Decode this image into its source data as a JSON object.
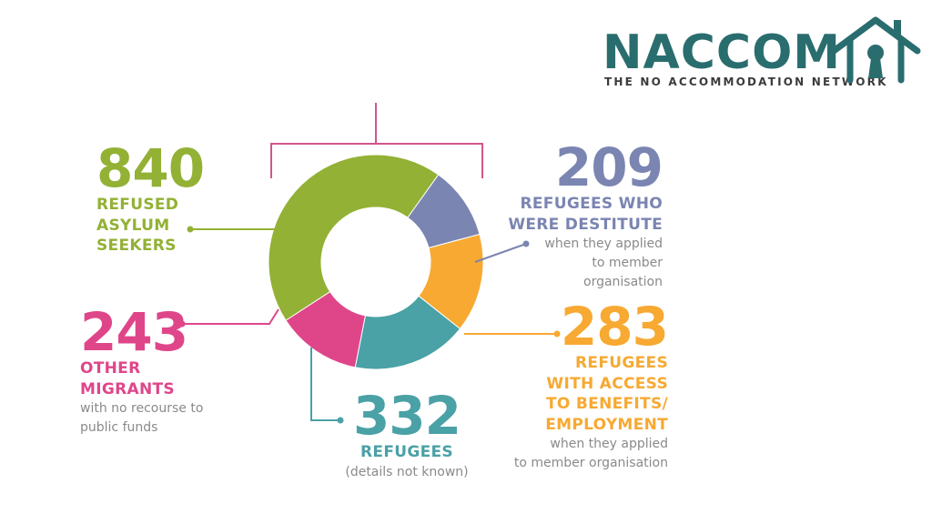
{
  "logo": {
    "name": "NACCOM",
    "tagline": "THE NO ACCOMMODATION NETWORK",
    "color": "#2a6d6f"
  },
  "chart_data": {
    "type": "pie",
    "variant": "donut",
    "title": "",
    "categories": [
      "REFUSED ASYLUM SEEKERS",
      "REFUGEES WHO WERE DESTITUTE",
      "REFUGEES WITH ACCESS TO BENEFITS/ EMPLOYMENT",
      "REFUGEES",
      "OTHER MIGRANTS"
    ],
    "values": [
      840,
      209,
      283,
      332,
      243
    ],
    "colors": [
      "#93b135",
      "#7b85b1",
      "#f7a932",
      "#4aa1a6",
      "#df468a"
    ],
    "labels": [
      {
        "value": "840",
        "lines": [
          "REFUSED",
          "ASYLUM",
          "SEEKERS"
        ],
        "note": [],
        "color": "#93b135"
      },
      {
        "value": "209",
        "lines": [
          "REFUGEES WHO",
          "WERE DESTITUTE"
        ],
        "note": [
          "when they applied",
          "to member",
          "organisation"
        ],
        "color": "#7b85b1"
      },
      {
        "value": "283",
        "lines": [
          "REFUGEES",
          "WITH ACCESS",
          "TO BENEFITS/",
          "EMPLOYMENT"
        ],
        "note": [
          "when they applied",
          "to member organisation"
        ],
        "color": "#f7a932"
      },
      {
        "value": "332",
        "lines": [
          "REFUGEES"
        ],
        "note": [
          "(details not known)"
        ],
        "color": "#4aa1a6"
      },
      {
        "value": "243",
        "lines": [
          "OTHER",
          "MIGRANTS"
        ],
        "note": [
          "with no recourse to",
          "public funds"
        ],
        "color": "#df468a"
      }
    ],
    "bracket_color": "#d2558b"
  }
}
